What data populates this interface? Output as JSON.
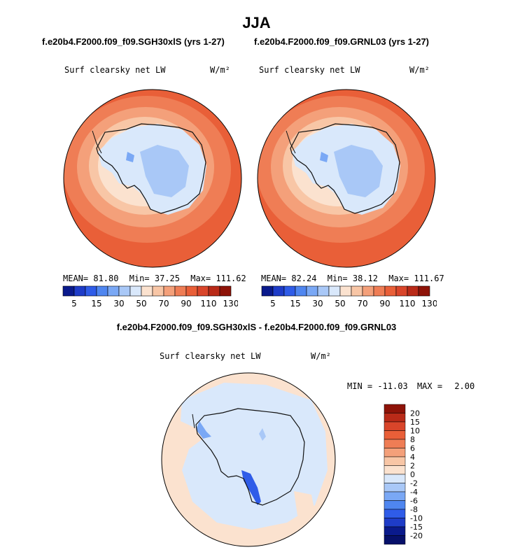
{
  "figure": {
    "title": "JJA",
    "panel_left_title": "f.e20b4.F2000.f09_f09.SGH30xlS (yrs 1-27)",
    "panel_right_title": "f.e20b4.F2000.f09_f09.GRNL03 (yrs 1-27)",
    "diff_title": "f.e20b4.F2000.f09_f09.SGH30xlS - f.e20b4.F2000.f09_f09.GRNL03"
  },
  "chart_data": [
    {
      "type": "heatmap",
      "name": "SGH30xlS",
      "variable": "Surf clearsky net LW",
      "units": "W/m²",
      "stats": {
        "mean_label": "MEAN=",
        "mean": "81.80",
        "min_label": "Min=",
        "min": "37.25",
        "max_label": "Max=",
        "max": "111.62"
      },
      "colorbar_levels": [
        "5",
        "15",
        "30",
        "50",
        "70",
        "90",
        "110",
        "130"
      ],
      "colorbar_colors": [
        "#0a1a8c",
        "#1e3cc8",
        "#2f5ce8",
        "#4f86f0",
        "#7aa8f5",
        "#a9c8f7",
        "#d9e8fb",
        "#fbe2cf",
        "#f8c6a6",
        "#f4a07a",
        "#ef7d55",
        "#e95f38",
        "#d9452a",
        "#b92a18",
        "#8e1308"
      ]
    },
    {
      "type": "heatmap",
      "name": "GRNL03",
      "variable": "Surf clearsky net LW",
      "units": "W/m²",
      "stats": {
        "mean_label": "MEAN=",
        "mean": "82.24",
        "min_label": "Min=",
        "min": "38.12",
        "max_label": "Max=",
        "max": "111.67"
      },
      "colorbar_levels": [
        "5",
        "15",
        "30",
        "50",
        "70",
        "90",
        "110",
        "130"
      ],
      "colorbar_colors": [
        "#0a1a8c",
        "#1e3cc8",
        "#2f5ce8",
        "#4f86f0",
        "#7aa8f5",
        "#a9c8f7",
        "#d9e8fb",
        "#fbe2cf",
        "#f8c6a6",
        "#f4a07a",
        "#ef7d55",
        "#e95f38",
        "#d9452a",
        "#b92a18",
        "#8e1308"
      ]
    },
    {
      "type": "heatmap",
      "name": "difference",
      "variable": "Surf clearsky net LW",
      "units": "W/m²",
      "stats": {
        "min_label": "MIN =",
        "min": "-11.03",
        "max_label": "MAX =",
        "max": "2.00"
      },
      "colorbar_levels": [
        "20",
        "15",
        "10",
        "8",
        "6",
        "4",
        "2",
        "0",
        "-2",
        "-4",
        "-6",
        "-8",
        "-10",
        "-15",
        "-20"
      ],
      "colorbar_colors": [
        "#8e1308",
        "#b92a18",
        "#d9452a",
        "#e95f38",
        "#ef7d55",
        "#f4a07a",
        "#f8c6a6",
        "#fbe2cf",
        "#d9e8fb",
        "#a9c8f7",
        "#7aa8f5",
        "#4f86f0",
        "#2f5ce8",
        "#1e3cc8",
        "#0a1a8c",
        "#06106a"
      ]
    }
  ]
}
